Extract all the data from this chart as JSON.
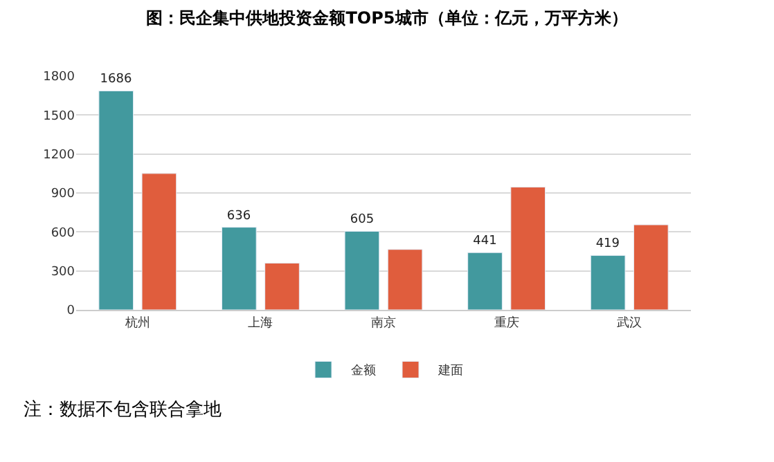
{
  "chart_data": {
    "type": "bar",
    "title": "图：民企集中供地投资金额TOP5城市（单位：亿元，万平方米）",
    "categories": [
      "杭州",
      "上海",
      "南京",
      "重庆",
      "武汉"
    ],
    "series": [
      {
        "name": "金额",
        "color": "#42999e",
        "values": [
          1686,
          636,
          605,
          441,
          419
        ],
        "value_labels": [
          "1686",
          "636",
          "605",
          "441",
          "419"
        ]
      },
      {
        "name": "建面",
        "color": "#e05d3d",
        "values": [
          1050,
          360,
          465,
          945,
          655
        ]
      }
    ],
    "ylim": [
      0,
      1800
    ],
    "yticks": [
      0,
      300,
      600,
      900,
      1200,
      1500,
      1800
    ],
    "grid": "y",
    "legend": "bottom",
    "annotations": [
      "注：数据不包含联合拿地"
    ]
  }
}
